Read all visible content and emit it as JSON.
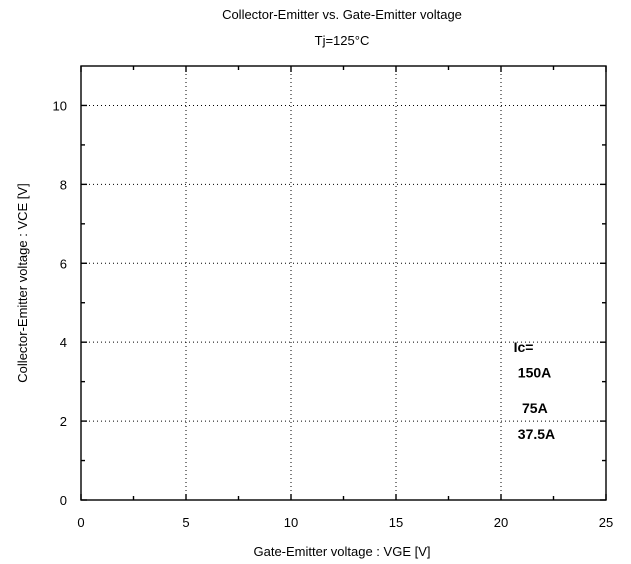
{
  "chart_data": {
    "type": "line",
    "title": "Collector-Emitter  vs.  Gate-Emitter  voltage",
    "subtitle": "Tj=125°C",
    "xlabel": "Gate-Emitter  voltage  :  VGE [V]",
    "ylabel": "Collector-Emitter  voltage  :    VCE [V]",
    "xlim": [
      0,
      25
    ],
    "ylim": [
      0,
      11
    ],
    "x_ticks": [
      0,
      5,
      10,
      15,
      20,
      25
    ],
    "y_ticks": [
      0,
      2,
      4,
      6,
      8,
      10
    ],
    "x_tick_labels": [
      "0",
      "5",
      "10",
      "15",
      "20",
      "25"
    ],
    "y_tick_labels": [
      "0",
      "2",
      "4",
      "6",
      "8",
      "10"
    ],
    "grid": true,
    "series": [],
    "annotations": [
      {
        "text": "Ic=",
        "x": 20.6,
        "y": 3.75
      },
      {
        "text": "150A",
        "x": 20.8,
        "y": 3.1
      },
      {
        "text": "75A",
        "x": 21.0,
        "y": 2.2
      },
      {
        "text": "37.5A",
        "x": 20.8,
        "y": 1.55
      }
    ]
  }
}
